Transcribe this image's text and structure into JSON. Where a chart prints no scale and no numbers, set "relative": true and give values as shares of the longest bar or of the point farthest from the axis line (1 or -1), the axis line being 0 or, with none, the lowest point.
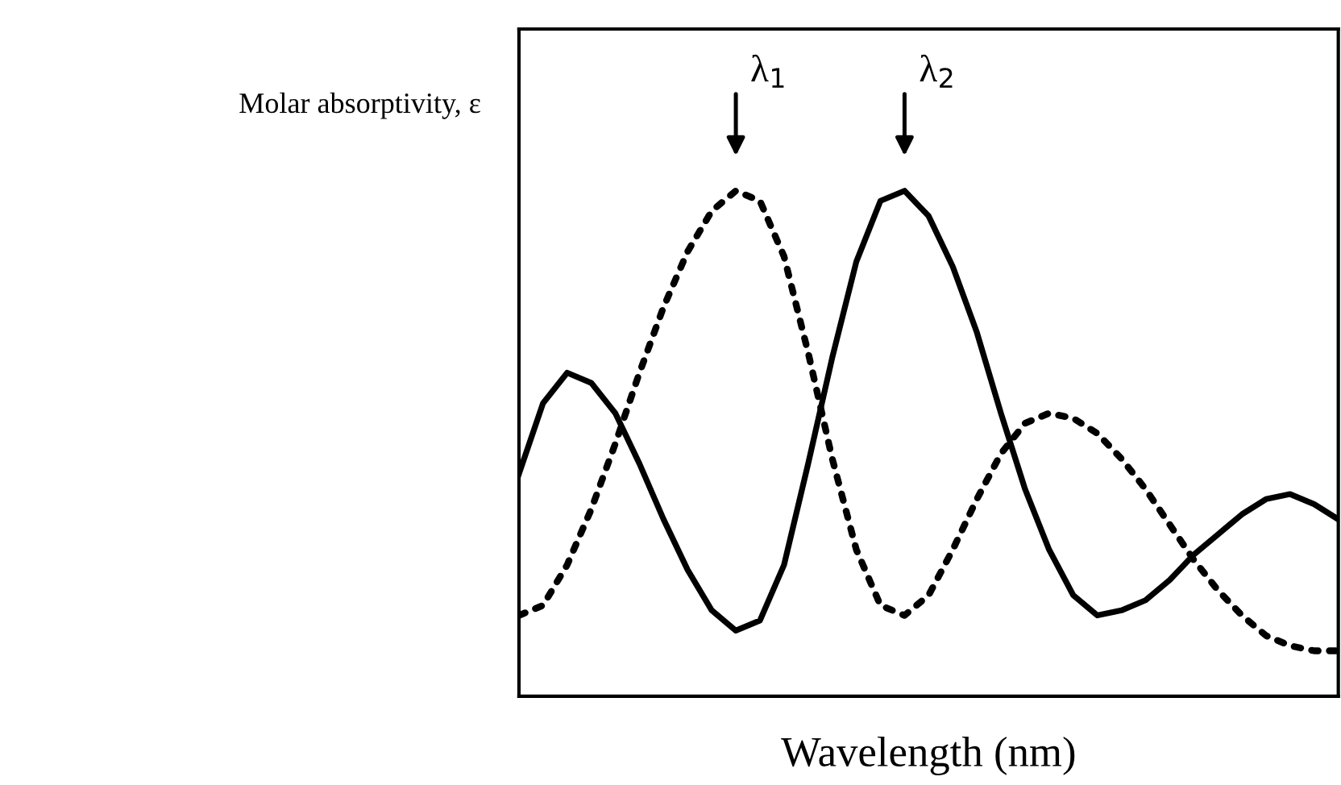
{
  "chart_data": {
    "type": "line",
    "relative": true,
    "xlabel": "Wavelength (nm)",
    "ylabel": "Molar absorptivity, ε",
    "annotations": [
      "λ$_{1}$",
      "λ$_{2}$"
    ],
    "legend": false,
    "marker": "none",
    "categories": [
      null,
      null,
      null,
      null,
      null,
      null,
      null,
      null,
      null,
      null,
      null,
      null,
      null,
      null,
      null,
      null,
      null,
      null,
      null,
      null,
      null,
      null,
      null,
      null,
      null,
      null,
      null,
      null,
      null,
      null,
      null,
      null,
      null,
      null,
      null
    ],
    "series": [
      {
        "color": "#000000",
        "line_style": "solid",
        "values": [
          0.44,
          0.58,
          0.64,
          0.62,
          0.56,
          0.46,
          0.35,
          0.25,
          0.17,
          0.13,
          0.15,
          0.26,
          0.46,
          0.67,
          0.86,
          0.98,
          1.0,
          0.95,
          0.85,
          0.72,
          0.56,
          0.41,
          0.29,
          0.2,
          0.16,
          0.17,
          0.19,
          0.23,
          0.28,
          0.32,
          0.36,
          0.39,
          0.4,
          0.38,
          0.35
        ]
      },
      {
        "color": "#000000",
        "line_style": "dotted",
        "values": [
          0.16,
          0.18,
          0.26,
          0.37,
          0.5,
          0.64,
          0.77,
          0.88,
          0.96,
          1.0,
          0.98,
          0.87,
          0.68,
          0.47,
          0.29,
          0.18,
          0.16,
          0.2,
          0.29,
          0.39,
          0.48,
          0.54,
          0.56,
          0.55,
          0.52,
          0.47,
          0.41,
          0.34,
          0.27,
          0.21,
          0.16,
          0.12,
          0.1,
          0.09,
          0.09
        ]
      }
    ]
  }
}
